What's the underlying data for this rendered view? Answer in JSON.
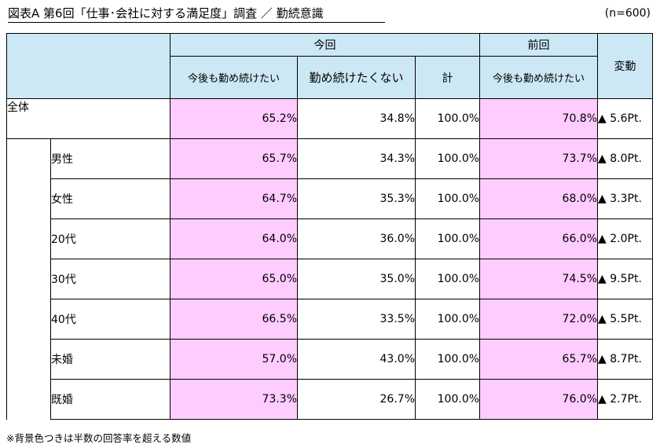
{
  "header": {
    "title": "図表A 第6回「仕事･会社に対する満足度」調査 ／ 勤続意識",
    "sample": "(n=600)"
  },
  "columns": {
    "group_current": "今回",
    "group_previous": "前回",
    "change": "変動",
    "current_continue": "今後も勤め続けたい",
    "current_not_continue": "勤め続けたくない",
    "current_total": "計",
    "previous_continue": "今後も勤め続けたい"
  },
  "footnote": "※背景色つきは半数の回答率を超える数値",
  "colors": {
    "header_bg": "#cce8f4",
    "highlight_bg": "#ffccff"
  },
  "chart_data": {
    "type": "table",
    "title": "図表A 第6回「仕事･会社に対する満足度」調査 ／ 勤続意識",
    "columns": [
      "今後も勤め続けたい",
      "勤め続けたくない",
      "計",
      "今後も勤め続けたい",
      "変動"
    ],
    "rows": [
      {
        "label": "全体",
        "indent": false,
        "current_continue": "65.2%",
        "current_not_continue": "34.8%",
        "total": "100.0%",
        "previous_continue": "70.8%",
        "change": "▲ 5.6Pt."
      },
      {
        "label": "男性",
        "indent": true,
        "current_continue": "65.7%",
        "current_not_continue": "34.3%",
        "total": "100.0%",
        "previous_continue": "73.7%",
        "change": "▲ 8.0Pt."
      },
      {
        "label": "女性",
        "indent": true,
        "current_continue": "64.7%",
        "current_not_continue": "35.3%",
        "total": "100.0%",
        "previous_continue": "68.0%",
        "change": "▲ 3.3Pt."
      },
      {
        "label": "20代",
        "indent": true,
        "current_continue": "64.0%",
        "current_not_continue": "36.0%",
        "total": "100.0%",
        "previous_continue": "66.0%",
        "change": "▲ 2.0Pt."
      },
      {
        "label": "30代",
        "indent": true,
        "current_continue": "65.0%",
        "current_not_continue": "35.0%",
        "total": "100.0%",
        "previous_continue": "74.5%",
        "change": "▲ 9.5Pt."
      },
      {
        "label": "40代",
        "indent": true,
        "current_continue": "66.5%",
        "current_not_continue": "33.5%",
        "total": "100.0%",
        "previous_continue": "72.0%",
        "change": "▲ 5.5Pt."
      },
      {
        "label": "未婚",
        "indent": true,
        "current_continue": "57.0%",
        "current_not_continue": "43.0%",
        "total": "100.0%",
        "previous_continue": "65.7%",
        "change": "▲ 8.7Pt."
      },
      {
        "label": "既婚",
        "indent": true,
        "current_continue": "73.3%",
        "current_not_continue": "26.7%",
        "total": "100.0%",
        "previous_continue": "76.0%",
        "change": "▲ 2.7Pt."
      }
    ]
  }
}
